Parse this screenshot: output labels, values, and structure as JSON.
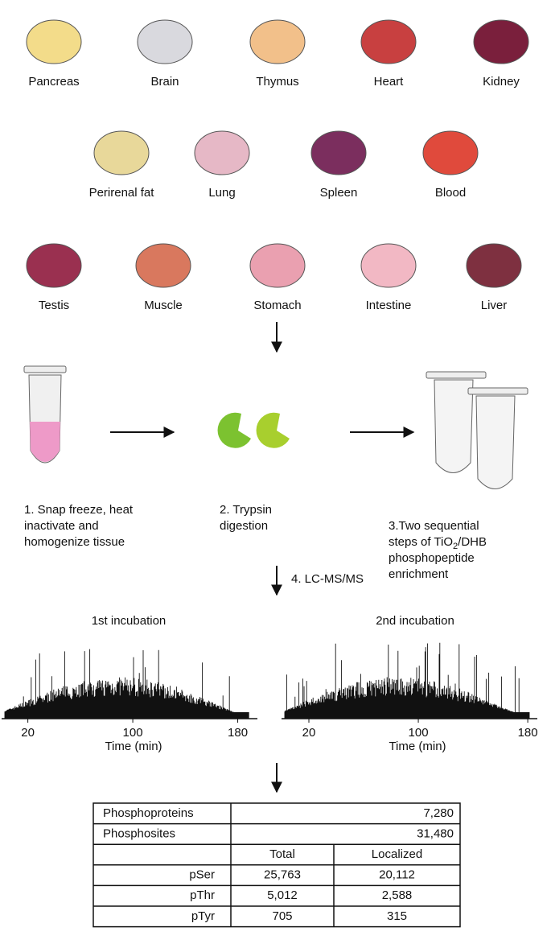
{
  "organs": [
    "Pancreas",
    "Brain",
    "Thymus",
    "Heart",
    "Kidney",
    "Perirenal fat",
    "Lung",
    "Spleen",
    "Blood",
    "Testis",
    "Muscle",
    "Stomach",
    "Intestine",
    "Liver"
  ],
  "steps": [
    {
      "lines": [
        "1. Snap freeze, heat",
        "inactivate and",
        "homogenize tissue"
      ]
    },
    {
      "lines": [
        "2. Trypsin",
        "digestion"
      ]
    },
    {
      "line1": "3.Two sequential",
      "line2_before": "steps of TiO",
      "line2_sub": "2",
      "line2_after": "/DHB",
      "line3": "phosphopeptide",
      "line4": "enrichment"
    }
  ],
  "ms_label": "4. LC-MS/MS",
  "chromatograms": [
    {
      "title": "1st incubation",
      "xlabel": "Time (min)",
      "xlim": [
        0,
        195
      ],
      "xticks": [
        20,
        100,
        180
      ]
    },
    {
      "title": "2nd incubation",
      "xlabel": "Time (min)",
      "xlim": [
        0,
        187
      ],
      "xticks": [
        20,
        100,
        180
      ]
    }
  ],
  "table": {
    "summary": [
      [
        "Phosphoproteins",
        "7,280"
      ],
      [
        "Phosphosites",
        "31,480"
      ]
    ],
    "header": [
      "Total",
      "Localized"
    ],
    "rows": [
      [
        "pSer",
        "25,763",
        "20,112"
      ],
      [
        "pThr",
        "5,012",
        "2,588"
      ],
      [
        "pTyr",
        "705",
        "315"
      ]
    ]
  }
}
